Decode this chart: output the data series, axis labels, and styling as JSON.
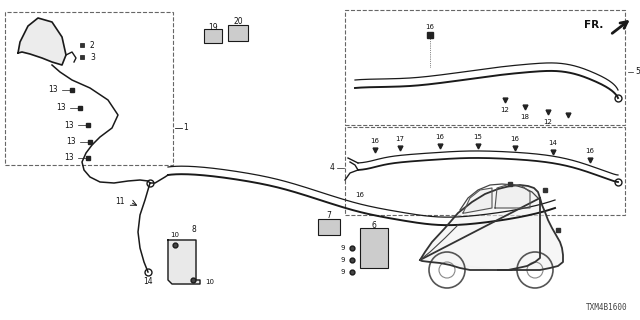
{
  "bg_color": "#ffffff",
  "diagram_code": "TXM4B1600",
  "line_color": "#1a1a1a",
  "text_color": "#111111",
  "dash_color": "#666666"
}
